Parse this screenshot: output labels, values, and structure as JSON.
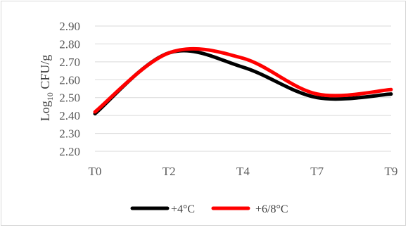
{
  "chart_data": {
    "type": "line",
    "categories": [
      "T0",
      "T2",
      "T4",
      "T7",
      "T9"
    ],
    "series": [
      {
        "name": "+4°C",
        "color": "#000000",
        "values": [
          2.41,
          2.75,
          2.67,
          2.5,
          2.52
        ]
      },
      {
        "name": "+6/8°C",
        "color": "#ff0000",
        "values": [
          2.42,
          2.75,
          2.72,
          2.52,
          2.545
        ]
      }
    ],
    "smooth": true,
    "ylabel_prefix": "Log",
    "ylabel_sub": "10",
    "ylabel_suffix": " CFU/g",
    "ylim": [
      2.2,
      2.9
    ],
    "yticks": [
      "2.90",
      "2.80",
      "2.70",
      "2.60",
      "2.50",
      "2.40",
      "2.30",
      "2.20"
    ],
    "grid": true,
    "legend": "bottom"
  }
}
